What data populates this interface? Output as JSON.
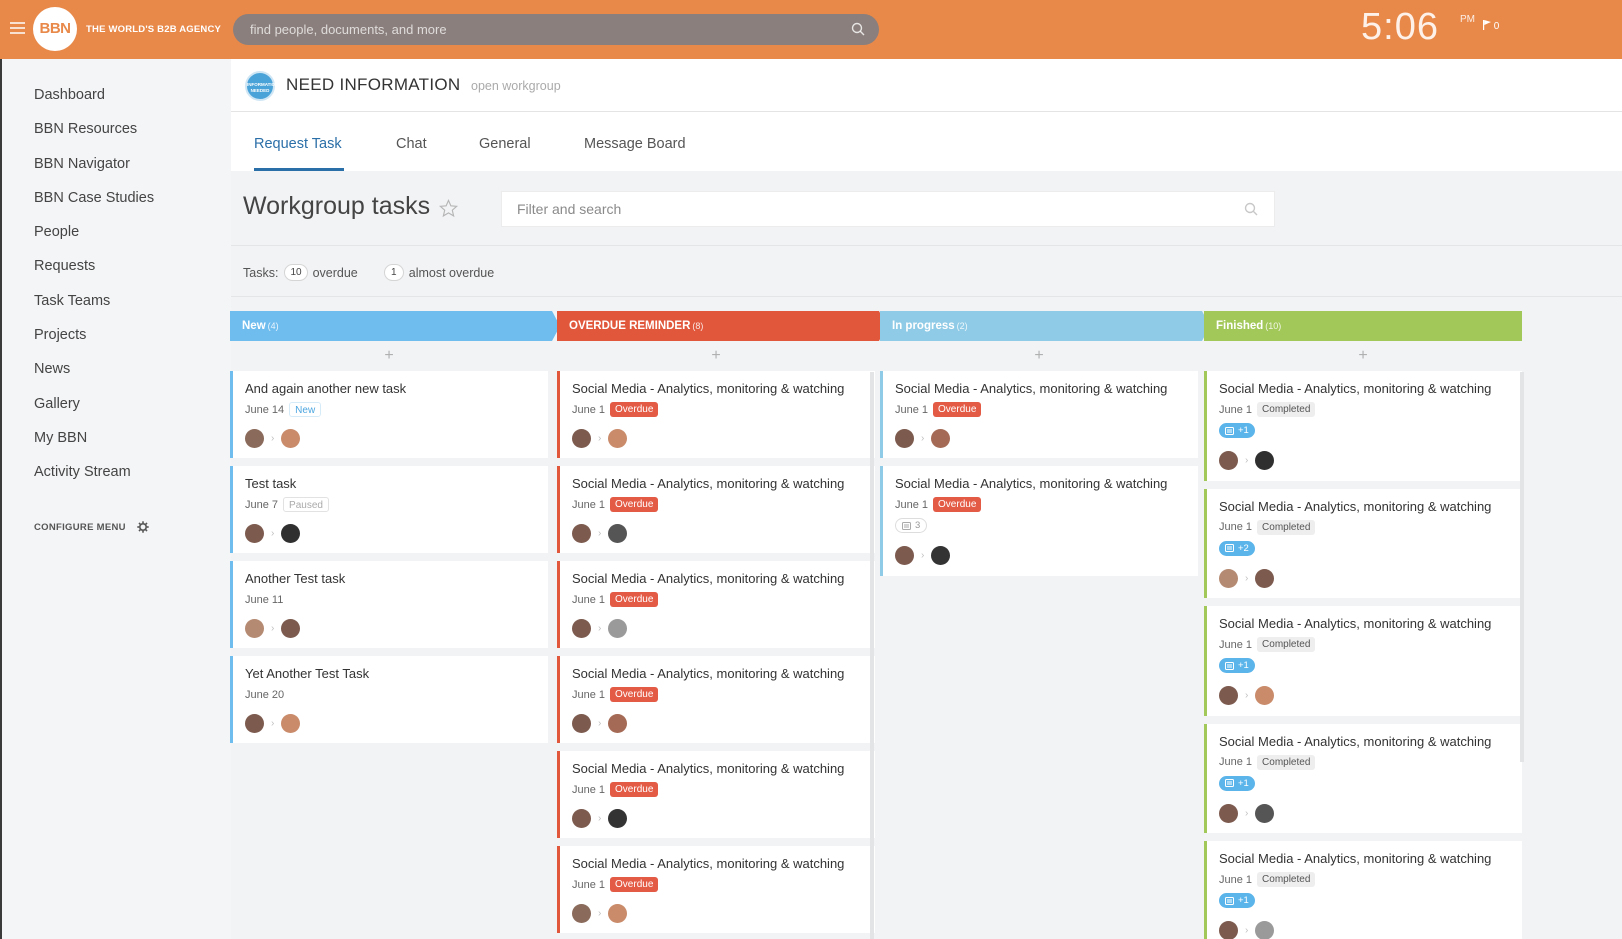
{
  "topbar": {
    "logo": "BBN",
    "tagline": "THE WORLD'S B2B AGENCY",
    "search_placeholder": "find people, documents, and more",
    "clock_time": "5:06",
    "clock_ampm": "PM",
    "notifications": "0"
  },
  "sidebar": {
    "items": [
      {
        "label": "Dashboard"
      },
      {
        "label": "BBN Resources"
      },
      {
        "label": "BBN Navigator"
      },
      {
        "label": "BBN Case Studies"
      },
      {
        "label": "People"
      },
      {
        "label": "Requests"
      },
      {
        "label": "Task Teams"
      },
      {
        "label": "Projects"
      },
      {
        "label": "News"
      },
      {
        "label": "Gallery"
      },
      {
        "label": "My BBN"
      },
      {
        "label": "Activity Stream"
      }
    ],
    "configure_label": "CONFIGURE MENU"
  },
  "workgroup": {
    "avatar_text": "INFORMATION NEEDED",
    "title": "NEED INFORMATION",
    "type": "open workgroup"
  },
  "tabs": [
    {
      "label": "Request Task"
    },
    {
      "label": "Chat"
    },
    {
      "label": "General"
    },
    {
      "label": "Message Board"
    }
  ],
  "tasks_header": {
    "title": "Workgroup tasks",
    "filter_placeholder": "Filter and search",
    "summary_label": "Tasks:",
    "overdue_count": "10",
    "overdue_label": "overdue",
    "almost_count": "1",
    "almost_label": "almost overdue"
  },
  "columns": [
    {
      "name": "New",
      "count": "(4)",
      "color": "#6fbcef",
      "cards": [
        {
          "title": "And again another new task",
          "date": "June 14",
          "status": "New",
          "status_type": "new"
        },
        {
          "title": "Test task",
          "date": "June 7",
          "status": "Paused",
          "status_type": "paused"
        },
        {
          "title": "Another Test task",
          "date": "June 11",
          "status": "",
          "status_type": ""
        },
        {
          "title": "Yet Another Test Task",
          "date": "June 20",
          "status": "",
          "status_type": ""
        }
      ]
    },
    {
      "name": "OVERDUE REMINDER",
      "count": "(8)",
      "color": "#e0573c",
      "cards": [
        {
          "title": "Social Media - Analytics, monitoring & watching",
          "date": "June 1",
          "status": "Overdue",
          "status_type": "overdue"
        },
        {
          "title": "Social Media - Analytics, monitoring & watching",
          "date": "June 1",
          "status": "Overdue",
          "status_type": "overdue"
        },
        {
          "title": "Social Media - Analytics, monitoring & watching",
          "date": "June 1",
          "status": "Overdue",
          "status_type": "overdue"
        },
        {
          "title": "Social Media - Analytics, monitoring & watching",
          "date": "June 1",
          "status": "Overdue",
          "status_type": "overdue"
        },
        {
          "title": "Social Media - Analytics, monitoring & watching",
          "date": "June 1",
          "status": "Overdue",
          "status_type": "overdue"
        },
        {
          "title": "Social Media - Analytics, monitoring & watching",
          "date": "June 1",
          "status": "Overdue",
          "status_type": "overdue"
        }
      ]
    },
    {
      "name": "In progress",
      "count": "(2)",
      "color": "#8fcbe6",
      "cards": [
        {
          "title": "Social Media - Analytics, monitoring & watching",
          "date": "June 1",
          "status": "Overdue",
          "status_type": "overdue"
        },
        {
          "title": "Social Media - Analytics, monitoring & watching",
          "date": "June 1",
          "status": "Overdue",
          "status_type": "overdue",
          "sub_badge": "3",
          "sub_type": "grey"
        }
      ]
    },
    {
      "name": "Finished",
      "count": "(10)",
      "color": "#a3c85a",
      "cards": [
        {
          "title": "Social Media - Analytics, monitoring & watching",
          "date": "June 1",
          "status": "Completed",
          "status_type": "completed",
          "sub_badge": "+1",
          "sub_type": "blue"
        },
        {
          "title": "Social Media - Analytics, monitoring & watching",
          "date": "June 1",
          "status": "Completed",
          "status_type": "completed",
          "sub_badge": "+2",
          "sub_type": "blue"
        },
        {
          "title": "Social Media - Analytics, monitoring & watching",
          "date": "June 1",
          "status": "Completed",
          "status_type": "completed",
          "sub_badge": "+1",
          "sub_type": "blue"
        },
        {
          "title": "Social Media - Analytics, monitoring & watching",
          "date": "June 1",
          "status": "Completed",
          "status_type": "completed",
          "sub_badge": "+1",
          "sub_type": "blue"
        },
        {
          "title": "Social Media - Analytics, monitoring & watching",
          "date": "June 1",
          "status": "Completed",
          "status_type": "completed",
          "sub_badge": "+1",
          "sub_type": "blue"
        }
      ]
    }
  ]
}
